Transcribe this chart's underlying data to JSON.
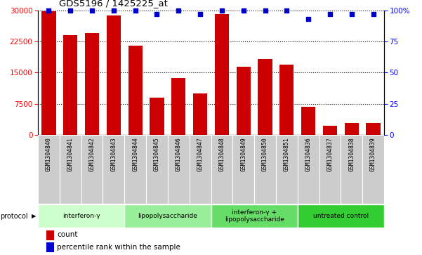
{
  "title": "GDS5196 / 1425225_at",
  "samples": [
    "GSM1304840",
    "GSM1304841",
    "GSM1304842",
    "GSM1304843",
    "GSM1304844",
    "GSM1304845",
    "GSM1304846",
    "GSM1304847",
    "GSM1304848",
    "GSM1304849",
    "GSM1304850",
    "GSM1304851",
    "GSM1304836",
    "GSM1304837",
    "GSM1304838",
    "GSM1304839"
  ],
  "counts": [
    29800,
    24000,
    24500,
    28800,
    21500,
    9000,
    13800,
    10000,
    29000,
    16500,
    18200,
    17000,
    6800,
    2200,
    3000,
    2900
  ],
  "percentiles": [
    100,
    100,
    100,
    100,
    100,
    97,
    100,
    97,
    100,
    100,
    100,
    100,
    93,
    97,
    97,
    97
  ],
  "ylim_left": [
    0,
    30000
  ],
  "ylim_right": [
    0,
    100
  ],
  "yticks_left": [
    0,
    7500,
    15000,
    22500,
    30000
  ],
  "yticks_right": [
    0,
    25,
    50,
    75,
    100
  ],
  "bar_color": "#cc0000",
  "dot_color": "#0000cc",
  "groups": [
    {
      "label": "interferon-γ",
      "start": 0,
      "end": 4,
      "color": "#ccffcc"
    },
    {
      "label": "lipopolysaccharide",
      "start": 4,
      "end": 8,
      "color": "#99ee99"
    },
    {
      "label": "interferon-γ +\nlipopolysaccharide",
      "start": 8,
      "end": 12,
      "color": "#66dd66"
    },
    {
      "label": "untreated control",
      "start": 12,
      "end": 16,
      "color": "#33cc33"
    }
  ],
  "group_colors": [
    "#ccffcc",
    "#99ee99",
    "#66dd66",
    "#33cc33"
  ],
  "protocol_label": "protocol",
  "legend_count_label": "count",
  "legend_percentile_label": "percentile rank within the sample",
  "tick_label_bg": "#cccccc",
  "tick_label_edge": "#aaaaaa"
}
